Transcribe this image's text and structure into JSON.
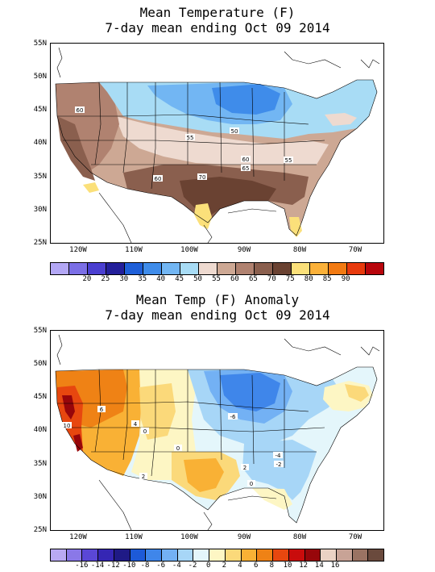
{
  "top_map": {
    "title_line1": "Mean Temperature (F)",
    "title_line2": "7-day mean ending Oct 09 2014",
    "lat_labels": [
      "55N",
      "50N",
      "45N",
      "40N",
      "35N",
      "30N",
      "25N"
    ],
    "lon_labels": [
      "120W",
      "110W",
      "100W",
      "90W",
      "80W",
      "70W"
    ],
    "contour_labels": [
      "60",
      "55",
      "50",
      "60",
      "65",
      "55",
      "60",
      "70"
    ],
    "legend_colors": [
      "#b3a7f5",
      "#7b6fe6",
      "#4a3fd0",
      "#231f9a",
      "#1e5fd8",
      "#3f8cea",
      "#72b6f3",
      "#a8dcf5",
      "#eedad0",
      "#cda894",
      "#b08270",
      "#8a5f4e",
      "#6a4232",
      "#fbe07a",
      "#fbb139",
      "#f27a12",
      "#e83a0d",
      "#b8060c"
    ],
    "legend_labels": [
      "20",
      "25",
      "30",
      "35",
      "40",
      "45",
      "50",
      "55",
      "60",
      "65",
      "70",
      "75",
      "80",
      "85",
      "90"
    ]
  },
  "bottom_map": {
    "title_line1": "Mean Temp (F) Anomaly",
    "title_line2": "7-day mean ending Oct 09 2014",
    "lat_labels": [
      "55N",
      "50N",
      "45N",
      "40N",
      "35N",
      "30N",
      "25N"
    ],
    "lon_labels": [
      "120W",
      "110W",
      "100W",
      "90W",
      "80W",
      "70W"
    ],
    "contour_labels": [
      "6",
      "10",
      "4",
      "0",
      "2",
      "-6",
      "0",
      "-4",
      "-2",
      "2",
      "0"
    ],
    "legend_colors": [
      "#b9a9f3",
      "#8a78e8",
      "#5a47d6",
      "#3526b4",
      "#1f1a86",
      "#1d5ad8",
      "#3f86ea",
      "#73b1f4",
      "#a7d6f7",
      "#e4f6fb",
      "#fdf6c4",
      "#fbd97a",
      "#f9b135",
      "#ef8215",
      "#e7470f",
      "#c90c0c",
      "#97060a",
      "#ead2c4",
      "#c8a396",
      "#9a7363",
      "#6a4a3d"
    ],
    "legend_labels": [
      "-16",
      "-14",
      "-12",
      "-10",
      "-8",
      "-6",
      "-4",
      "-2",
      "0",
      "2",
      "4",
      "6",
      "8",
      "10",
      "12",
      "14",
      "16"
    ]
  }
}
